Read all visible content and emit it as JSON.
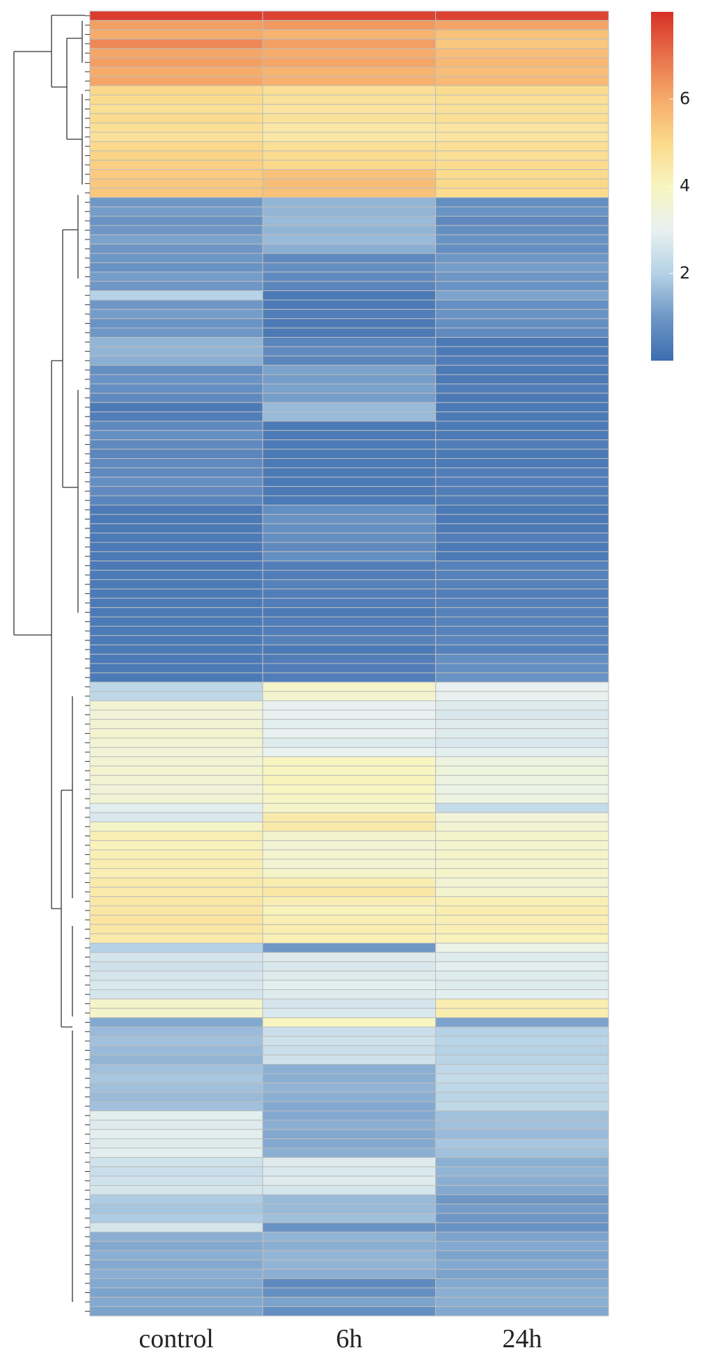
{
  "chart_data": {
    "type": "heatmap",
    "x": [
      "control",
      "6h",
      "24h"
    ],
    "zlim": [
      0,
      8
    ],
    "zticks": [
      2,
      4,
      6
    ],
    "colorscale": [
      "#3e6db0",
      "#6e97c6",
      "#b5d2e6",
      "#e8f1ef",
      "#f8f5c0",
      "#fbd98a",
      "#f6ab6a",
      "#e8704a",
      "#d73027"
    ],
    "values": [
      [
        7.8,
        7.7,
        7.7
      ],
      [
        6.2,
        6.3,
        6.1
      ],
      [
        6.0,
        5.8,
        5.5
      ],
      [
        6.6,
        6.2,
        5.4
      ],
      [
        6.1,
        6.0,
        5.6
      ],
      [
        6.2,
        6.1,
        5.7
      ],
      [
        6.0,
        5.8,
        5.6
      ],
      [
        6.1,
        5.9,
        5.7
      ],
      [
        5.0,
        4.8,
        4.9
      ],
      [
        4.9,
        4.7,
        4.8
      ],
      [
        4.8,
        4.6,
        4.7
      ],
      [
        4.9,
        4.7,
        4.8
      ],
      [
        4.8,
        4.5,
        4.6
      ],
      [
        4.7,
        4.5,
        4.6
      ],
      [
        5.0,
        4.8,
        4.8
      ],
      [
        5.1,
        4.9,
        4.8
      ],
      [
        5.2,
        5.0,
        4.9
      ],
      [
        5.3,
        5.5,
        4.9
      ],
      [
        5.4,
        5.6,
        5.0
      ],
      [
        5.4,
        5.5,
        4.9
      ],
      [
        1.0,
        1.5,
        0.8
      ],
      [
        1.1,
        1.5,
        0.9
      ],
      [
        0.9,
        1.6,
        0.7
      ],
      [
        1.0,
        1.5,
        0.8
      ],
      [
        1.2,
        1.6,
        0.9
      ],
      [
        1.0,
        1.4,
        0.8
      ],
      [
        1.0,
        0.7,
        1.0
      ],
      [
        0.9,
        0.8,
        1.1
      ],
      [
        1.1,
        0.7,
        1.0
      ],
      [
        1.0,
        0.6,
        0.9
      ],
      [
        2.0,
        0.3,
        1.2
      ],
      [
        1.0,
        0.3,
        0.8
      ],
      [
        1.1,
        0.4,
        0.9
      ],
      [
        0.9,
        0.3,
        0.8
      ],
      [
        1.0,
        0.3,
        0.7
      ],
      [
        1.5,
        0.6,
        0.3
      ],
      [
        1.5,
        0.7,
        0.3
      ],
      [
        1.4,
        0.6,
        0.4
      ],
      [
        0.8,
        1.2,
        0.3
      ],
      [
        0.9,
        1.1,
        0.3
      ],
      [
        0.8,
        1.2,
        0.4
      ],
      [
        0.7,
        1.1,
        0.3
      ],
      [
        0.3,
        1.6,
        0.3
      ],
      [
        0.4,
        1.6,
        0.3
      ],
      [
        0.7,
        0.3,
        0.3
      ],
      [
        0.8,
        0.3,
        0.3
      ],
      [
        0.7,
        0.3,
        0.4
      ],
      [
        0.6,
        0.3,
        0.3
      ],
      [
        0.7,
        0.3,
        0.3
      ],
      [
        0.7,
        0.3,
        0.4
      ],
      [
        0.8,
        0.3,
        0.4
      ],
      [
        0.7,
        0.3,
        0.4
      ],
      [
        0.6,
        0.3,
        0.4
      ],
      [
        0.3,
        0.8,
        0.3
      ],
      [
        0.3,
        0.9,
        0.3
      ],
      [
        0.3,
        0.8,
        0.3
      ],
      [
        0.3,
        0.8,
        0.4
      ],
      [
        0.3,
        0.7,
        0.3
      ],
      [
        0.3,
        0.8,
        0.3
      ],
      [
        0.3,
        0.4,
        0.5
      ],
      [
        0.3,
        0.4,
        0.5
      ],
      [
        0.3,
        0.5,
        0.5
      ],
      [
        0.3,
        0.4,
        0.4
      ],
      [
        0.3,
        0.4,
        0.5
      ],
      [
        0.3,
        0.3,
        0.5
      ],
      [
        0.3,
        0.4,
        0.5
      ],
      [
        0.3,
        0.4,
        0.5
      ],
      [
        0.3,
        0.5,
        0.6
      ],
      [
        0.3,
        0.3,
        0.5
      ],
      [
        0.3,
        0.4,
        0.8
      ],
      [
        0.3,
        0.4,
        0.8
      ],
      [
        0.3,
        0.4,
        0.9
      ],
      [
        2.2,
        3.8,
        3.0
      ],
      [
        2.2,
        3.7,
        3.0
      ],
      [
        3.6,
        3.0,
        2.8
      ],
      [
        3.5,
        3.0,
        2.7
      ],
      [
        3.6,
        2.9,
        2.8
      ],
      [
        3.7,
        3.0,
        2.8
      ],
      [
        3.6,
        2.8,
        2.7
      ],
      [
        3.5,
        3.0,
        2.9
      ],
      [
        3.6,
        4.0,
        3.3
      ],
      [
        3.7,
        4.0,
        3.4
      ],
      [
        3.6,
        4.1,
        3.3
      ],
      [
        3.5,
        4.0,
        3.2
      ],
      [
        3.6,
        3.9,
        3.3
      ],
      [
        2.9,
        3.8,
        2.3
      ],
      [
        2.7,
        4.4,
        3.5
      ],
      [
        3.8,
        4.4,
        3.6
      ],
      [
        4.2,
        3.7,
        3.8
      ],
      [
        4.1,
        3.6,
        3.7
      ],
      [
        4.2,
        3.7,
        3.8
      ],
      [
        4.3,
        3.6,
        3.7
      ],
      [
        4.2,
        3.8,
        3.8
      ],
      [
        4.4,
        4.3,
        3.6
      ],
      [
        4.4,
        4.5,
        3.7
      ],
      [
        4.5,
        4.2,
        4.2
      ],
      [
        4.5,
        4.1,
        4.3
      ],
      [
        4.6,
        4.2,
        4.2
      ],
      [
        4.5,
        4.3,
        4.2
      ],
      [
        4.4,
        4.2,
        4.1
      ],
      [
        2.0,
        1.0,
        3.2
      ],
      [
        2.6,
        2.8,
        2.8
      ],
      [
        2.5,
        2.7,
        2.9
      ],
      [
        2.6,
        2.8,
        2.8
      ],
      [
        2.7,
        2.9,
        2.8
      ],
      [
        2.6,
        2.8,
        2.9
      ],
      [
        3.8,
        2.6,
        4.3
      ],
      [
        3.8,
        2.7,
        4.3
      ],
      [
        1.3,
        4.0,
        1.2
      ],
      [
        1.6,
        2.4,
        2.0
      ],
      [
        1.7,
        2.5,
        2.1
      ],
      [
        1.6,
        2.4,
        2.0
      ],
      [
        1.5,
        2.5,
        2.1
      ],
      [
        1.7,
        1.4,
        2.2
      ],
      [
        1.8,
        1.4,
        2.3
      ],
      [
        1.7,
        1.5,
        2.2
      ],
      [
        1.6,
        1.4,
        2.1
      ],
      [
        1.7,
        1.3,
        2.2
      ],
      [
        2.9,
        1.3,
        1.7
      ],
      [
        2.8,
        1.4,
        1.7
      ],
      [
        2.9,
        1.3,
        1.6
      ],
      [
        2.8,
        1.3,
        1.8
      ],
      [
        2.9,
        1.4,
        1.7
      ],
      [
        2.5,
        2.8,
        1.4
      ],
      [
        2.4,
        2.7,
        1.5
      ],
      [
        2.5,
        2.8,
        1.4
      ],
      [
        2.6,
        2.6,
        1.3
      ],
      [
        1.9,
        1.6,
        1.0
      ],
      [
        1.8,
        1.6,
        1.1
      ],
      [
        1.9,
        1.7,
        1.0
      ],
      [
        2.6,
        0.9,
        0.9
      ],
      [
        1.4,
        1.5,
        1.2
      ],
      [
        1.3,
        1.4,
        1.3
      ],
      [
        1.4,
        1.5,
        1.2
      ],
      [
        1.3,
        1.5,
        1.3
      ],
      [
        1.4,
        1.4,
        1.2
      ],
      [
        1.3,
        0.7,
        1.3
      ],
      [
        1.2,
        0.8,
        1.4
      ],
      [
        1.3,
        1.2,
        1.4
      ],
      [
        1.2,
        0.8,
        1.3
      ]
    ]
  }
}
